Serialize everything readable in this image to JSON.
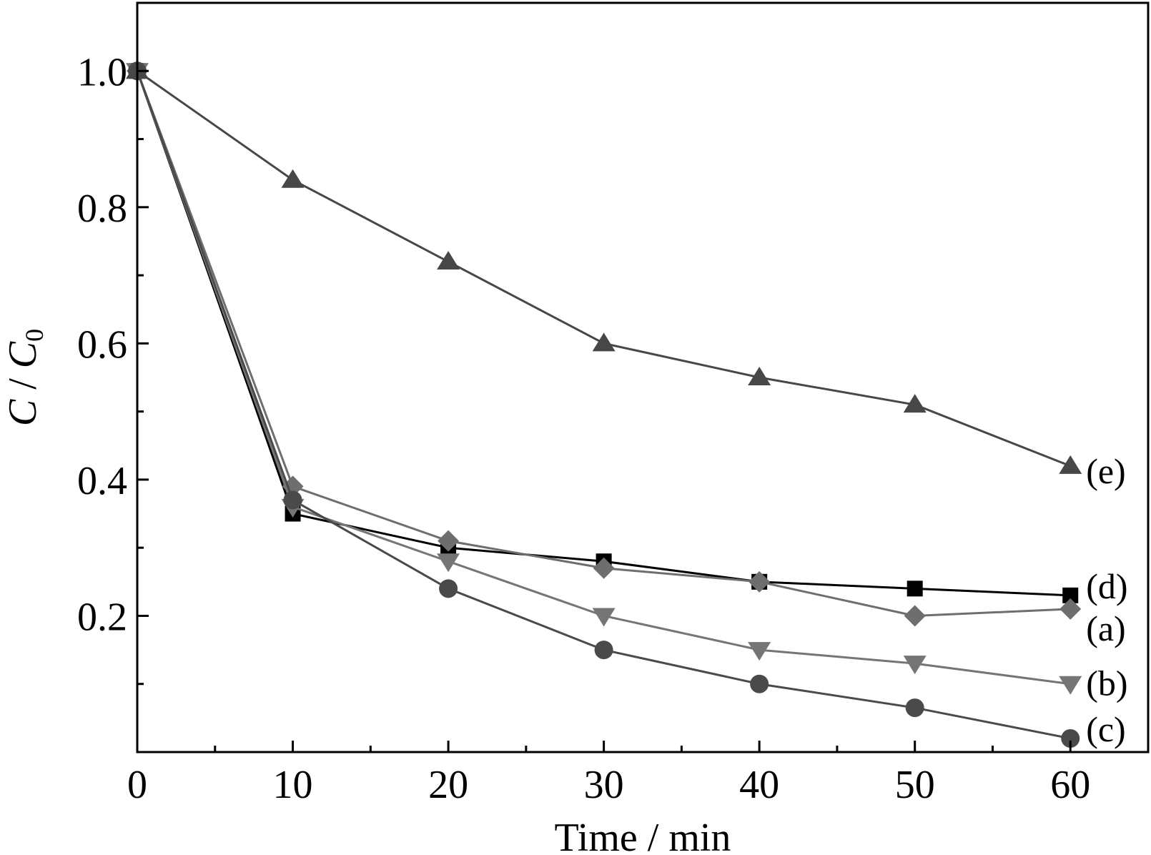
{
  "chart_data": {
    "type": "line",
    "title": "",
    "xlabel": "Time / min",
    "ylabel": {
      "base_main": "C",
      "separator": " / ",
      "base_sub_main": "C",
      "subscript": "0"
    },
    "xlim": [
      0,
      65
    ],
    "ylim": [
      0.0,
      1.1
    ],
    "x_ticks": [
      0,
      10,
      20,
      30,
      40,
      50,
      60
    ],
    "x_tick_labels": [
      "0",
      "10",
      "20",
      "30",
      "40",
      "50",
      "60"
    ],
    "y_ticks": [
      0.2,
      0.4,
      0.6,
      0.8,
      1.0
    ],
    "y_tick_labels": [
      "0.2",
      "0.4",
      "0.6",
      "0.8",
      "1.0"
    ],
    "grid": false,
    "legend": "none (series labelled at line ends)",
    "x": [
      0,
      10,
      20,
      30,
      40,
      50,
      60
    ],
    "series": [
      {
        "name": "(d)",
        "marker": "square",
        "color": "#000000",
        "values": [
          1.0,
          0.35,
          0.3,
          0.28,
          0.25,
          0.24,
          0.23
        ]
      },
      {
        "name": "(a)",
        "marker": "diamond",
        "color": "#6e6e6e",
        "values": [
          1.0,
          0.39,
          0.31,
          0.27,
          0.25,
          0.2,
          0.21
        ]
      },
      {
        "name": "(b)",
        "marker": "triangle-down",
        "color": "#757575",
        "values": [
          1.0,
          0.36,
          0.28,
          0.2,
          0.15,
          0.13,
          0.1
        ]
      },
      {
        "name": "(c)",
        "marker": "circle",
        "color": "#4a4a4a",
        "values": [
          1.0,
          0.37,
          0.24,
          0.15,
          0.1,
          0.065,
          0.02
        ]
      },
      {
        "name": "(e)",
        "marker": "triangle-up",
        "color": "#474747",
        "values": [
          1.0,
          0.84,
          0.72,
          0.6,
          0.55,
          0.51,
          0.42
        ]
      }
    ]
  }
}
